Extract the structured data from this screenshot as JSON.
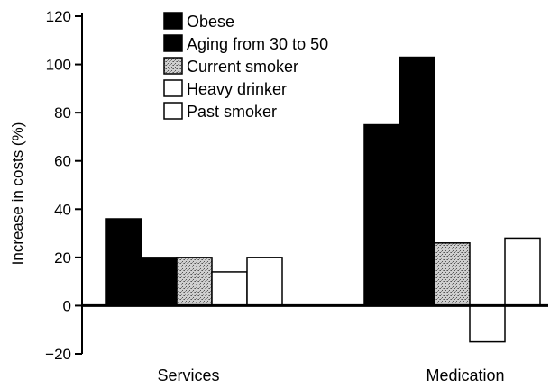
{
  "chart_data": {
    "type": "bar",
    "title": "",
    "xlabel": "",
    "ylabel": "Increase in costs (%)",
    "ylim": [
      -20,
      120
    ],
    "yticks": [
      120,
      100,
      80,
      60,
      40,
      20,
      0,
      -20
    ],
    "ytick_labels": [
      "120",
      "100",
      "80",
      "60",
      "40",
      "20",
      "0",
      "−20"
    ],
    "categories": [
      "Services",
      "Medication"
    ],
    "grid": false,
    "legend_position": "top-left",
    "series": [
      {
        "name": "Obese",
        "values": [
          36,
          75
        ],
        "fill": "solid-black"
      },
      {
        "name": "Aging from 30 to 50",
        "values": [
          20,
          103
        ],
        "fill": "solid-black"
      },
      {
        "name": "Current smoker",
        "values": [
          20,
          26
        ],
        "fill": "gray-stipple"
      },
      {
        "name": "Heavy drinker",
        "values": [
          14,
          -15
        ],
        "fill": "white"
      },
      {
        "name": "Past smoker",
        "values": [
          20,
          28
        ],
        "fill": "white"
      }
    ]
  }
}
